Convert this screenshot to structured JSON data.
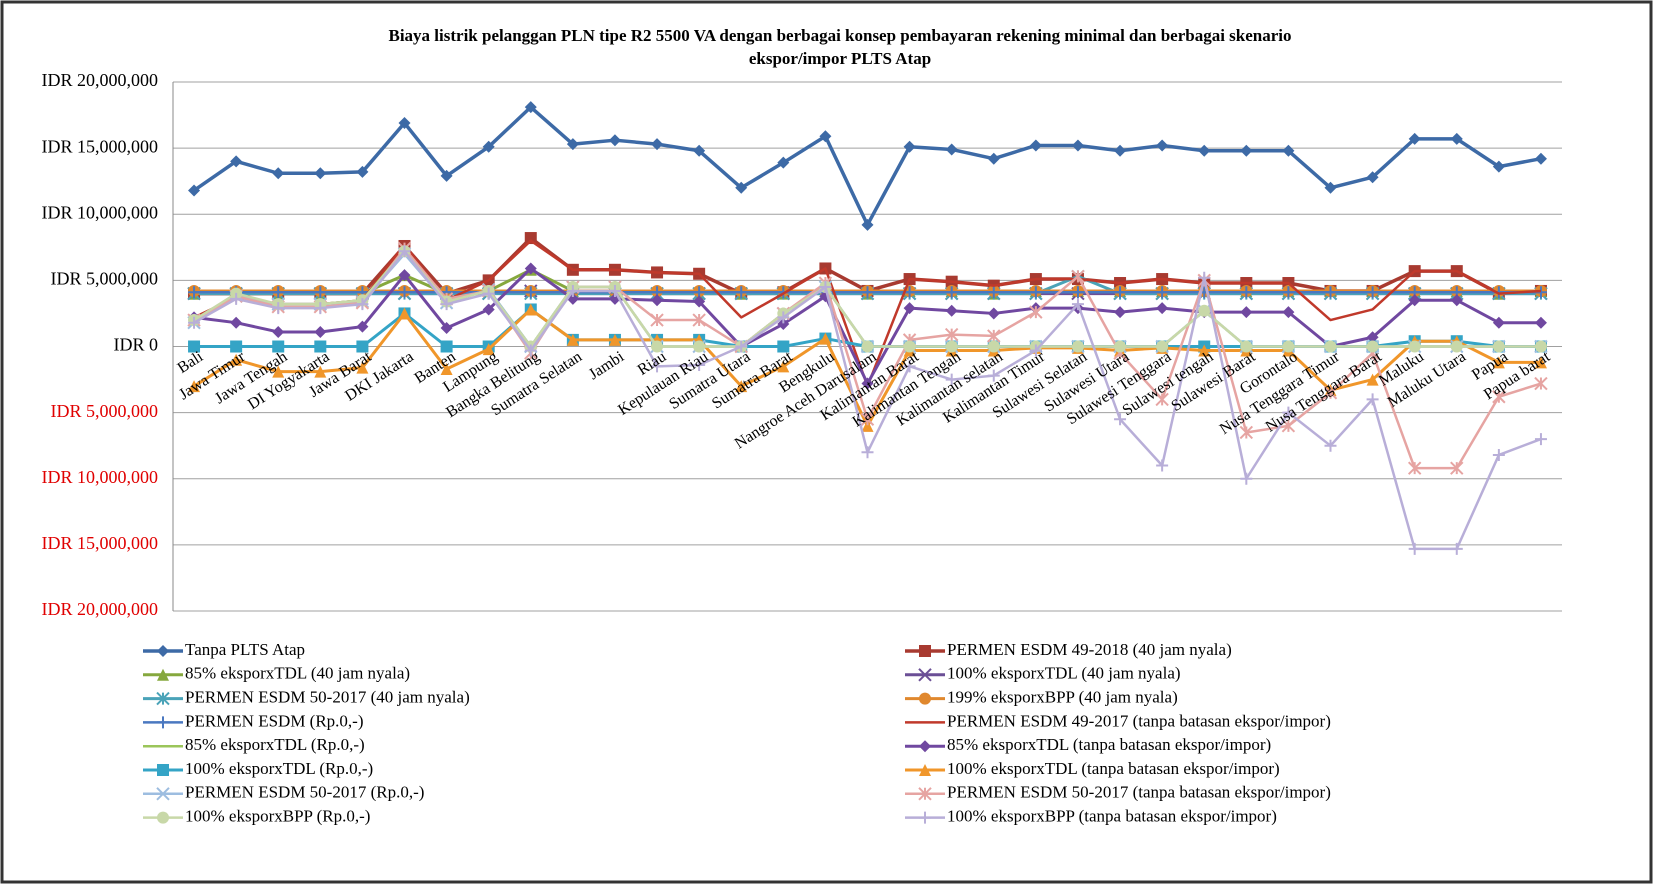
{
  "chart_data": {
    "type": "line",
    "title": [
      "Biaya listrik pelanggan PLN  tipe R2 5500 VA  dengan berbagai konsep pembayaran rekening minimal  dan berbagai skenario",
      "ekspor/impor  PLTS Atap"
    ],
    "categories": [
      "Bali",
      "Jawa Timur",
      "Jawa Tengah",
      "DI Yogyakarta",
      "Jawa Barat",
      "DKI Jakarta",
      "Banten",
      "Lampung",
      "Bangka Belitung",
      "Sumatra Selatan",
      "Jambi",
      "Riau",
      "Kepulauan Riau",
      "Sumatra Utara",
      "Sumatra Barat",
      "Bengkulu",
      "Nangroe Aceh Darusalam",
      "Kalimantan Barat",
      "Kalimantan Tengah",
      "Kalimantan selatan",
      "Kalimantan Timur",
      "Sulawesi Selatan",
      "Sulawesi Utara",
      "Sulawesi Tenggara",
      "Sulawesi tengah",
      "Sulawesi Barat",
      "Gorontalo",
      "Nusa Tenggara Timur",
      "Nusa Tenggara Barat",
      "Maluku",
      "Maluku Utara",
      "Papua",
      "Papua barat"
    ],
    "ylim": [
      -20000000,
      20000000
    ],
    "yticks": [
      {
        "value": 20000000,
        "label": "IDR 20,000,000"
      },
      {
        "value": 15000000,
        "label": "IDR 15,000,000"
      },
      {
        "value": 10000000,
        "label": "IDR 10,000,000"
      },
      {
        "value": 5000000,
        "label": "IDR 5,000,000"
      },
      {
        "value": 0,
        "label": "IDR 0"
      },
      {
        "value": -5000000,
        "label": "IDR 5,000,000"
      },
      {
        "value": -10000000,
        "label": "IDR 10,000,000"
      },
      {
        "value": -15000000,
        "label": "IDR 15,000,000"
      },
      {
        "value": -20000000,
        "label": "IDR 20,000,000"
      }
    ],
    "negative_tick_color": "#e00000",
    "grid": true,
    "series": [
      {
        "name": "Tanpa PLTS Atap",
        "color": "#3d6aa6",
        "marker": "diamond",
        "width": 3.5,
        "values": [
          11800000,
          14000000,
          13100000,
          13100000,
          13200000,
          16900000,
          12900000,
          15100000,
          18100000,
          15300000,
          15600000,
          15300000,
          14800000,
          12000000,
          13900000,
          15900000,
          9200000,
          15100000,
          14900000,
          14200000,
          15200000,
          15200000,
          14800000,
          15200000,
          14800000,
          14800000,
          14800000,
          12000000,
          12800000,
          15700000,
          15700000,
          13600000,
          14200000
        ]
      },
      {
        "name": "PERMEN ESDM 49-2018 (40 jam nyala)",
        "color": "#a83a30",
        "marker": "square",
        "width": 3.5,
        "values": [
          4000000,
          4000000,
          4000000,
          4000000,
          4000000,
          7600000,
          4000000,
          5000000,
          8200000,
          5800000,
          5800000,
          5600000,
          5500000,
          4000000,
          4100000,
          5900000,
          4200000,
          5100000,
          4900000,
          4600000,
          5100000,
          5100000,
          4800000,
          5100000,
          4800000,
          4800000,
          4800000,
          4200000,
          4200000,
          5700000,
          5700000,
          4000000,
          4200000
        ]
      },
      {
        "name": "85% eksporxTDL (40 jam nyala)",
        "color": "#86a83e",
        "marker": "triangle",
        "width": 3,
        "values": [
          4000000,
          4000000,
          4000000,
          4000000,
          4000000,
          5400000,
          4000000,
          4200000,
          5800000,
          4200000,
          4200000,
          4000000,
          4000000,
          4000000,
          4000000,
          4200000,
          4000000,
          4200000,
          4200000,
          4000000,
          4200000,
          4200000,
          4200000,
          4200000,
          4200000,
          4200000,
          4200000,
          4200000,
          4200000,
          4200000,
          4200000,
          4000000,
          4200000
        ]
      },
      {
        "name": "100% eksporxTDL (40 jam nyala)",
        "color": "#6b4f96",
        "marker": "x",
        "width": 3,
        "values": [
          4000000,
          4000000,
          4000000,
          4000000,
          4000000,
          4000000,
          4000000,
          4000000,
          4200000,
          4000000,
          4000000,
          4000000,
          4000000,
          4000000,
          4000000,
          4000000,
          4000000,
          4000000,
          4000000,
          4000000,
          4000000,
          4000000,
          4000000,
          4000000,
          4000000,
          4000000,
          4000000,
          4000000,
          4000000,
          4000000,
          4000000,
          4000000,
          4000000
        ]
      },
      {
        "name": "PERMEN ESDM 50-2017 (40 jam nyala)",
        "color": "#4aa3b8",
        "marker": "asterisk",
        "width": 3,
        "values": [
          4000000,
          4000000,
          4000000,
          4000000,
          4000000,
          4000000,
          4000000,
          4000000,
          4000000,
          4000000,
          4000000,
          4000000,
          4000000,
          4000000,
          4000000,
          4000000,
          4000000,
          4000000,
          4000000,
          4000000,
          4000000,
          5300000,
          4000000,
          4000000,
          4000000,
          4000000,
          4000000,
          4000000,
          4000000,
          4000000,
          4000000,
          4000000,
          4000000
        ]
      },
      {
        "name": "199% eksporxBPP (40 jam nyala)",
        "color": "#e0882e",
        "marker": "circle",
        "width": 3,
        "values": [
          4200000,
          4200000,
          4200000,
          4200000,
          4200000,
          4200000,
          4200000,
          4200000,
          4200000,
          4200000,
          4200000,
          4200000,
          4200000,
          4200000,
          4200000,
          4200000,
          4200000,
          4200000,
          4200000,
          4200000,
          4200000,
          4200000,
          4200000,
          4200000,
          4200000,
          4200000,
          4200000,
          4200000,
          4200000,
          4200000,
          4200000,
          4200000,
          4200000
        ]
      },
      {
        "name": "PERMEN ESDM (Rp.0,-)",
        "color": "#4a78c0",
        "marker": "plus",
        "width": 2.5,
        "values": [
          4100000,
          4100000,
          4100000,
          4100000,
          4100000,
          4100000,
          4100000,
          4100000,
          4100000,
          4100000,
          4100000,
          4100000,
          4100000,
          4100000,
          4100000,
          4100000,
          4100000,
          4100000,
          4100000,
          4100000,
          4100000,
          4100000,
          4100000,
          4100000,
          4100000,
          4100000,
          4100000,
          4100000,
          4100000,
          4100000,
          4100000,
          4100000,
          4100000
        ]
      },
      {
        "name": "PERMEN ESDM 49-2017 (tanpa batasan ekspor/impor)",
        "color": "#c0392b",
        "marker": "none",
        "width": 2.5,
        "values": [
          2200000,
          3700000,
          3200000,
          3200000,
          3500000,
          7700000,
          3500000,
          5000000,
          8000000,
          5800000,
          5800000,
          5600000,
          5500000,
          2200000,
          4000000,
          5900000,
          -3000000,
          5100000,
          4900000,
          4600000,
          5100000,
          5100000,
          4800000,
          5100000,
          4800000,
          4800000,
          4800000,
          2000000,
          2800000,
          5700000,
          5700000,
          4000000,
          4200000
        ]
      },
      {
        "name": "85% eksporxTDL (Rp.0,-)",
        "color": "#9bc55a",
        "marker": "none",
        "width": 2.5,
        "values": [
          1800000,
          3800000,
          3200000,
          3200000,
          3500000,
          7300000,
          3300000,
          4300000,
          0,
          4500000,
          4500000,
          0,
          0,
          0,
          2500000,
          4500000,
          0,
          0,
          0,
          0,
          0,
          0,
          0,
          0,
          2700000,
          0,
          0,
          0,
          0,
          0,
          0,
          0,
          0
        ]
      },
      {
        "name": "85% eksporxTDL (tanpa batasan ekspor/impor)",
        "color": "#7048a0",
        "marker": "diamond",
        "width": 3,
        "values": [
          2200000,
          1800000,
          1100000,
          1100000,
          1500000,
          5400000,
          1400000,
          2800000,
          5900000,
          3600000,
          3600000,
          3500000,
          3400000,
          0,
          1700000,
          3800000,
          -2800000,
          2900000,
          2700000,
          2500000,
          2900000,
          2900000,
          2600000,
          2900000,
          2600000,
          2600000,
          2600000,
          0,
          700000,
          3500000,
          3500000,
          1800000,
          1800000
        ]
      },
      {
        "name": "100% eksporxTDL (Rp.0,-)",
        "color": "#34a4c6",
        "marker": "square",
        "width": 3,
        "values": [
          0,
          0,
          0,
          0,
          0,
          2500000,
          0,
          0,
          2800000,
          500000,
          500000,
          500000,
          500000,
          0,
          0,
          600000,
          0,
          0,
          0,
          0,
          0,
          0,
          0,
          0,
          0,
          0,
          0,
          0,
          0,
          400000,
          400000,
          0,
          0
        ]
      },
      {
        "name": "100% eksporxTDL (tanpa batasan ekspor/impor)",
        "color": "#f0962a",
        "marker": "triangle",
        "width": 3,
        "values": [
          -3000000,
          -1000000,
          -1900000,
          -1900000,
          -1600000,
          2500000,
          -1700000,
          -200000,
          2800000,
          500000,
          500000,
          500000,
          500000,
          -3000000,
          -1500000,
          600000,
          -6000000,
          -300000,
          -300000,
          -300000,
          -100000,
          -100000,
          -300000,
          -100000,
          -300000,
          -300000,
          -300000,
          -3300000,
          -2500000,
          400000,
          400000,
          -1200000,
          -1200000
        ]
      },
      {
        "name": "PERMEN ESDM 50-2017 (Rp.0,-)",
        "color": "#9dbde0",
        "marker": "x",
        "width": 2.5,
        "values": [
          1800000,
          3800000,
          3200000,
          3200000,
          3400000,
          7000000,
          3300000,
          4300000,
          0,
          4500000,
          4500000,
          0,
          0,
          0,
          2500000,
          4500000,
          0,
          0,
          0,
          0,
          0,
          0,
          0,
          0,
          2700000,
          0,
          0,
          0,
          0,
          0,
          0,
          0,
          0
        ]
      },
      {
        "name": "PERMEN ESDM 50-2017 (tanpa batasan ekspor/impor)",
        "color": "#e6a4a2",
        "marker": "asterisk",
        "width": 2.5,
        "values": [
          2000000,
          3800000,
          3000000,
          3000000,
          3300000,
          7400000,
          3600000,
          4200000,
          -500000,
          4500000,
          4500000,
          2000000,
          2000000,
          0,
          2500000,
          4800000,
          -5500000,
          500000,
          900000,
          800000,
          2600000,
          5300000,
          -500000,
          -4000000,
          5000000,
          -6500000,
          -6000000,
          -3500000,
          -500000,
          -9200000,
          -9200000,
          -3800000,
          -2800000
        ]
      },
      {
        "name": "100% eksporxBPP (Rp.0,-)",
        "color": "#c8d8a8",
        "marker": "circle",
        "width": 2.5,
        "values": [
          2000000,
          4000000,
          3200000,
          3200000,
          3500000,
          7200000,
          3400000,
          4200000,
          0,
          4500000,
          4500000,
          0,
          0,
          0,
          2500000,
          4500000,
          0,
          0,
          0,
          0,
          0,
          0,
          0,
          0,
          2700000,
          0,
          0,
          0,
          0,
          0,
          0,
          0,
          0
        ]
      },
      {
        "name": "100% eksporxBPP (tanpa batasan ekspor/impor)",
        "color": "#b8aed8",
        "marker": "plus",
        "width": 2.5,
        "values": [
          1800000,
          3600000,
          2900000,
          2900000,
          3200000,
          7200000,
          3200000,
          4000000,
          -300000,
          4200000,
          4200000,
          -1500000,
          -1400000,
          0,
          2200000,
          4500000,
          -8000000,
          -1500000,
          -2500000,
          -2200000,
          -300000,
          3200000,
          -5500000,
          -9000000,
          5200000,
          -10000000,
          -5000000,
          -7500000,
          -4000000,
          -15300000,
          -15300000,
          -8200000,
          -7000000
        ]
      }
    ]
  }
}
